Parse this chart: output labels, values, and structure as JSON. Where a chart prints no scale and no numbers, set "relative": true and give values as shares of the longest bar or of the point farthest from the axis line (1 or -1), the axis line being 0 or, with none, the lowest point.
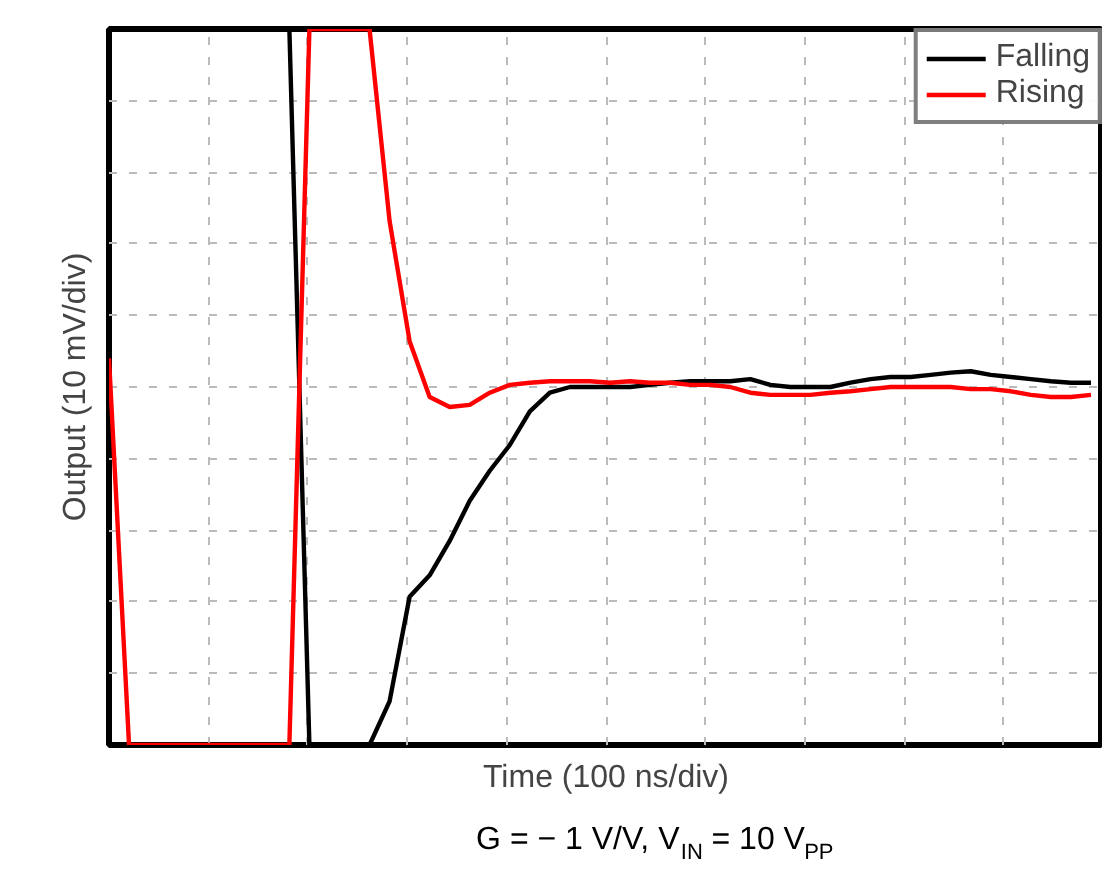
{
  "chart_data": {
    "type": "line",
    "relative": true,
    "xlabel": "Time (100 ns/div)",
    "ylabel": "Output (10 mV/div)",
    "annotations": [
      "G = − 1 V/V, V$_{IN}$ = 10 V$_{PP}$"
    ],
    "categories": [
      null,
      null,
      null,
      null,
      null,
      null,
      null,
      null,
      null,
      null,
      null,
      null,
      null,
      null,
      null,
      null,
      null,
      null,
      null,
      null,
      null,
      null,
      null,
      null,
      null,
      null,
      null,
      null,
      null,
      null,
      null,
      null,
      null,
      null,
      null,
      null,
      null,
      null,
      null,
      null,
      null,
      null,
      null,
      null,
      null,
      null,
      null,
      null,
      null,
      null
    ],
    "series": [
      {
        "name": "Falling",
        "color": "#000000",
        "values": [
          1,
          1,
          1,
          1,
          1,
          1,
          1,
          1,
          1,
          1,
          0,
          0,
          0,
          0,
          0.061,
          0.207,
          0.237,
          0.285,
          0.341,
          0.383,
          0.419,
          0.466,
          0.492,
          0.5,
          0.5,
          0.5,
          0.5,
          0.503,
          0.506,
          0.508,
          0.508,
          0.508,
          0.511,
          0.503,
          0.5,
          0.5,
          0.5,
          0.506,
          0.511,
          0.514,
          0.514,
          0.517,
          0.52,
          0.522,
          0.517,
          0.514,
          0.511,
          0.508,
          0.506,
          0.506
        ]
      },
      {
        "name": "Rising",
        "color": "#ff0000",
        "values": [
          0.54,
          0,
          0,
          0,
          0,
          0,
          0,
          0,
          0,
          0,
          1,
          1,
          1,
          1,
          0.732,
          0.564,
          0.486,
          0.472,
          0.475,
          0.492,
          0.503,
          0.506,
          0.508,
          0.508,
          0.508,
          0.506,
          0.508,
          0.506,
          0.506,
          0.503,
          0.503,
          0.5,
          0.492,
          0.489,
          0.489,
          0.489,
          0.492,
          0.494,
          0.497,
          0.5,
          0.5,
          0.5,
          0.5,
          0.497,
          0.497,
          0.494,
          0.489,
          0.486,
          0.486,
          0.489
        ]
      }
    ],
    "grid": true,
    "legend": "top right",
    "line_style": "solid",
    "marker": "none"
  }
}
